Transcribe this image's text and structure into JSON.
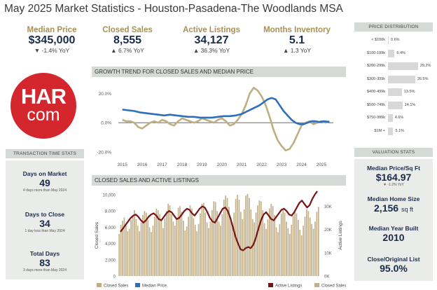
{
  "title": "May 2025 Market Statistics - Houston-Pasadena-The Woodlands MSA",
  "kpis": [
    {
      "label": "Median Price",
      "value": "$345,000",
      "change": "▼ -1.4% YoY"
    },
    {
      "label": "Closed Sales",
      "value": "8,555",
      "change": "▲ 6.7% YoY"
    },
    {
      "label": "Active Listings",
      "value": "34,127",
      "change": "▲ 36.3% YoY"
    },
    {
      "label": "Months Inventory",
      "value": "5.1",
      "change": "▲ 1.3 YoY"
    }
  ],
  "logo": {
    "top": "HAR",
    "bottom": "com",
    "color": "#d3262d"
  },
  "price_distribution": {
    "header": "PRICE DISTRIBUTION",
    "rows": [
      {
        "label": "< $100k",
        "pct": 0.6,
        "text": "0.6%"
      },
      {
        "label": "$100-199k",
        "pct": 6.4,
        "text": "6.4%"
      },
      {
        "label": "$200-299k",
        "pct": 29.2,
        "text": "29.2%"
      },
      {
        "label": "$300-399k",
        "pct": 26.5,
        "text": "26.5%"
      },
      {
        "label": "$400-499k",
        "pct": 13.5,
        "text": "13.5%"
      },
      {
        "label": "$500-749k",
        "pct": 14.1,
        "text": "14.1%"
      },
      {
        "label": "$750-999k",
        "pct": 4.6,
        "text": "4.6%"
      },
      {
        "label": "$1M +",
        "pct": 5.1,
        "text": "5.1%"
      }
    ]
  },
  "transaction_stats": {
    "header": "TRANSACTION TIME STATS",
    "items": [
      {
        "label": "Days on Market",
        "value": "49",
        "sub": "4 days more than May 2024"
      },
      {
        "label": "Days to Close",
        "value": "34",
        "sub": "1 day less than May 2024"
      },
      {
        "label": "Total Days",
        "value": "83",
        "sub": "3 days more than May 2024"
      }
    ]
  },
  "valuation_stats": {
    "header": "VALUATION STATS",
    "items": [
      {
        "label": "Median Price/Sq Ft",
        "value": "$164.97",
        "sub": "▼ -1.2% YoY"
      },
      {
        "label": "Median Home Size",
        "value": "2,156",
        "unit": "sq ft"
      },
      {
        "label": "Median Year Built",
        "value": "2010"
      },
      {
        "label": "Close/Original List",
        "value": "95.0%"
      }
    ]
  },
  "colors": {
    "gold": "#a89158",
    "navy": "#1a2b4a",
    "blue": "#2c6fbe",
    "maroon": "#7a1414",
    "tan": "#c2b088",
    "header_bg": "#d4dad6"
  },
  "chart_data": [
    {
      "type": "line",
      "title": "GROWTH TREND FOR CLOSED SALES AND MEDIAN PRICE",
      "x_ticks": [
        "2015",
        "2016",
        "2017",
        "2018",
        "2019",
        "2020",
        "2021",
        "2022",
        "2023",
        "2024",
        "2025"
      ],
      "y_ticks": [
        "20.0%",
        "0.0%",
        "-20.0%"
      ],
      "ylim": [
        -20,
        25
      ],
      "legend": [
        "Closed Sales",
        "Median Price"
      ],
      "legend_position": "bottom",
      "series": [
        {
          "name": "Closed Sales",
          "color": "#bfae82",
          "x": [
            2015.0,
            2015.2,
            2015.4,
            2015.6,
            2015.8,
            2016.0,
            2016.2,
            2016.4,
            2016.6,
            2016.8,
            2017.0,
            2017.2,
            2017.4,
            2017.6,
            2017.8,
            2018.0,
            2018.2,
            2018.4,
            2018.6,
            2018.8,
            2019.0,
            2019.2,
            2019.4,
            2019.6,
            2019.8,
            2020.0,
            2020.2,
            2020.4,
            2020.6,
            2020.8,
            2021.0,
            2021.2,
            2021.4,
            2021.6,
            2021.8,
            2022.0,
            2022.2,
            2022.4,
            2022.6,
            2022.8,
            2023.0,
            2023.2,
            2023.4,
            2023.6,
            2023.8,
            2024.0,
            2024.2,
            2024.4,
            2024.6,
            2024.8,
            2025.0,
            2025.2,
            2025.4
          ],
          "y": [
            2,
            1,
            1,
            0,
            -3,
            -4,
            -2,
            0,
            1,
            0,
            2,
            1,
            -1,
            -2,
            1,
            3,
            2,
            1,
            0,
            1,
            3,
            2,
            1,
            0,
            2,
            3,
            1,
            -2,
            -1,
            2,
            6,
            12,
            20,
            24,
            22,
            18,
            12,
            4,
            -5,
            -12,
            -16,
            -19,
            -18,
            -14,
            -8,
            -2,
            0,
            1,
            -1,
            0,
            1,
            0,
            1
          ]
        },
        {
          "name": "Median Price",
          "color": "#2c6fbe",
          "x": [
            2015.0,
            2015.3,
            2015.6,
            2015.9,
            2016.2,
            2016.5,
            2016.8,
            2017.1,
            2017.4,
            2017.7,
            2018.0,
            2018.3,
            2018.6,
            2018.9,
            2019.2,
            2019.5,
            2019.8,
            2020.1,
            2020.4,
            2020.7,
            2021.0,
            2021.3,
            2021.6,
            2021.9,
            2022.1,
            2022.3,
            2022.5,
            2022.7,
            2022.9,
            2023.1,
            2023.3,
            2023.5,
            2023.7,
            2023.9,
            2024.1,
            2024.3,
            2024.5,
            2024.7,
            2024.9,
            2025.1,
            2025.4
          ],
          "y": [
            9,
            8.5,
            8,
            7,
            6.5,
            6,
            5.5,
            5,
            5.5,
            5,
            4.5,
            4,
            4,
            3.5,
            3.5,
            3.5,
            4,
            4.5,
            4.5,
            5,
            6,
            8,
            10,
            12,
            14,
            16,
            17,
            16,
            12,
            8,
            5,
            2,
            0,
            -1,
            -1,
            0,
            1,
            1,
            0.5,
            1,
            0.5
          ]
        }
      ]
    },
    {
      "type": "bar",
      "title": "CLOSED SALES AND ACTIVE LISTINGS",
      "ylabel": "Closed Sales",
      "y2label": "Active Listings",
      "y_ticks": [
        "10,000",
        "8,000",
        "6,000",
        "4,000",
        "2,000",
        "0"
      ],
      "y2_ticks": [
        "30K",
        "20K",
        "10K",
        "0K"
      ],
      "ylim": [
        0,
        10000
      ],
      "y2lim": [
        0,
        35000
      ],
      "legend": [
        "Active Listings",
        "Closed Sales"
      ],
      "legend_position": "bottom",
      "series": [
        {
          "name": "Closed Sales",
          "color": "#c2b088",
          "values": [
            5200,
            6300,
            6800,
            7200,
            6500,
            5500,
            5800,
            6900,
            7400,
            8100,
            7000,
            6200,
            5500,
            6600,
            7500,
            8000,
            7800,
            6900,
            6000,
            5400,
            6200,
            7300,
            8300,
            8100,
            7600,
            6800,
            5900,
            7100,
            8000,
            8900,
            8700,
            7600,
            6700,
            6200,
            7200,
            8400,
            8600,
            7900,
            6800,
            5600,
            6100,
            7300,
            8700,
            8300,
            7100,
            6300,
            5500,
            6400,
            7700,
            8900,
            9000,
            7800,
            6600,
            5900,
            6700,
            8100,
            9200,
            9100,
            8000,
            6700,
            6200,
            7600,
            9400,
            9900,
            9600,
            8500,
            7200,
            6500,
            7800,
            9500,
            10000,
            9400,
            7900,
            7000,
            8200,
            9900,
            10100,
            9600,
            8200,
            7000,
            6600,
            7800,
            8700,
            9300,
            9200,
            8100,
            6500,
            5800,
            7000,
            8300,
            8900,
            8600,
            7500,
            6000,
            5400,
            6400,
            7700,
            8100,
            7800,
            6700,
            5900,
            5200,
            6300,
            7400,
            8000,
            7700,
            6900,
            5700,
            5000,
            6200,
            7300,
            8200,
            8000,
            7200,
            6400,
            5800,
            6700,
            7900,
            8500
          ]
        },
        {
          "name": "Active Listings",
          "color": "#7a1414",
          "values": [
            19000,
            20500,
            22000,
            23500,
            25000,
            26000,
            26500,
            25500,
            24000,
            23000,
            24000,
            25500,
            26500,
            27000,
            26000,
            24500,
            24000,
            25500,
            27000,
            28000,
            27500,
            26000,
            24500,
            25000,
            26500,
            28000,
            29000,
            28500,
            27000,
            26000,
            27500,
            29000,
            30000,
            29500,
            27500,
            25000,
            23500,
            23000,
            25000,
            27000,
            29000,
            29500,
            28000,
            25000,
            21000,
            17000,
            14000,
            11500,
            11000,
            12000,
            12500,
            12000,
            13500,
            16500,
            20500,
            24000,
            26500,
            27500,
            26000,
            24500,
            24000,
            25500,
            27000,
            28500,
            29000,
            28000,
            26500,
            26000,
            27500,
            29500,
            31500,
            32500,
            31000,
            29500,
            30500,
            33000,
            35000,
            36500
          ]
        }
      ]
    }
  ]
}
